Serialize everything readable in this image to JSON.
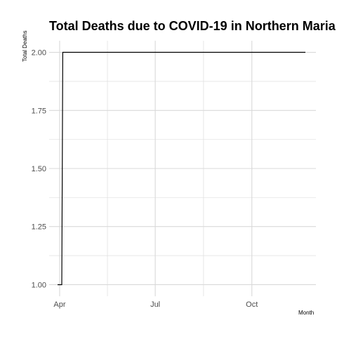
{
  "chart_data": {
    "type": "line",
    "title": "Total Deaths due to COVID-19 in Northern Maria",
    "xlabel": "Month",
    "ylabel": "Total Deaths",
    "x_ticks": [
      "Apr",
      "Jul",
      "Oct"
    ],
    "x_tick_dates": [
      "2020-04-01",
      "2020-07-01",
      "2020-10-01"
    ],
    "x_range": [
      "2020-03-22",
      "2020-12-01"
    ],
    "ylim": [
      0.95,
      2.05
    ],
    "y_ticks": [
      1.0,
      1.25,
      1.5,
      1.75,
      2.0
    ],
    "y_tick_labels": [
      "1.00",
      "1.25",
      "1.50",
      "1.75",
      "2.00"
    ],
    "grid": true,
    "series": [
      {
        "x": [
          "2020-03-30",
          "2020-04-03",
          "2020-04-04",
          "2020-11-21"
        ],
        "y": [
          1,
          1,
          2,
          2
        ]
      }
    ],
    "colors": {
      "line": "#000000",
      "grid": "#d9d9d9",
      "tick_text": "#4d4d4d"
    }
  }
}
